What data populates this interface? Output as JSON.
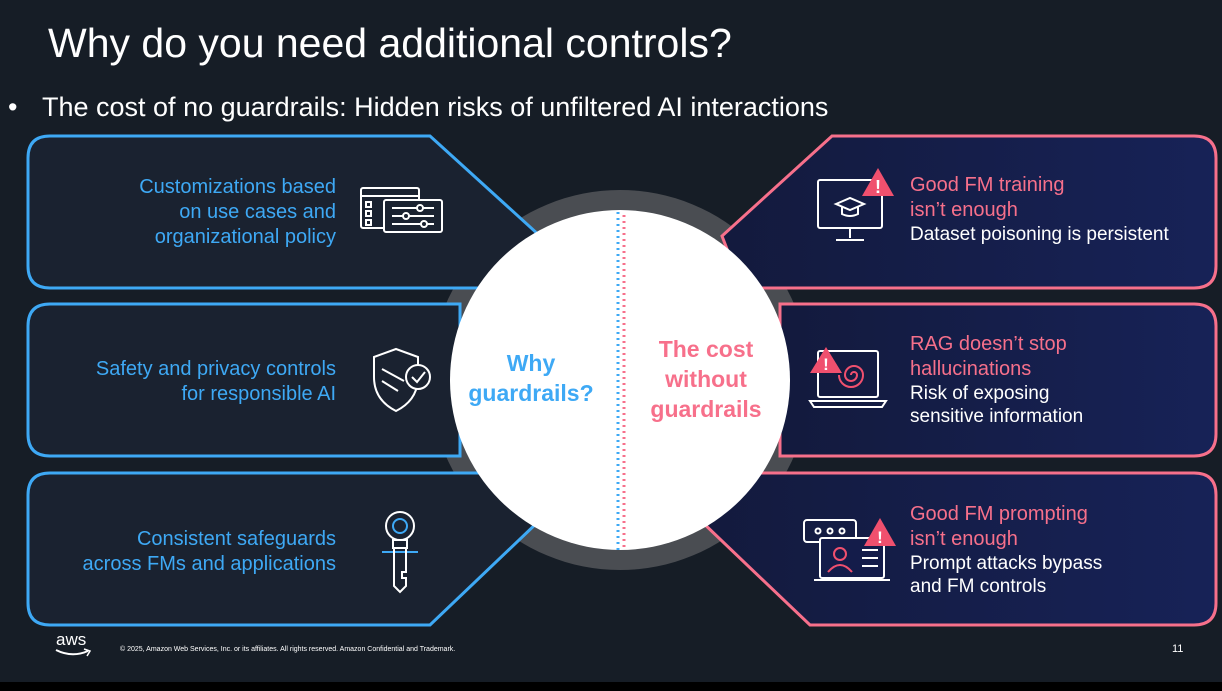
{
  "slide": {
    "title": "Why do you need additional controls?",
    "bullet_marker": "•",
    "bullet": "The cost of no guardrails: Hidden risks of unfiltered AI interactions",
    "left_items": [
      {
        "line1": "Customizations based",
        "line2": "on use cases and",
        "line3": "organizational policy",
        "icon": "settings-sliders-icon"
      },
      {
        "line1": "Safety and privacy controls",
        "line2": "for responsible AI",
        "icon": "shield-check-icon"
      },
      {
        "line1": "Consistent safeguards",
        "line2": "across FMs and applications",
        "icon": "key-icon"
      }
    ],
    "right_items": [
      {
        "head1": "Good FM training",
        "head2": "isn’t enough",
        "body1": "Dataset poisoning is persistent",
        "icon": "monitor-warning-icon"
      },
      {
        "head1": "RAG doesn’t stop",
        "head2": "hallucinations",
        "body1": "Risk of exposing",
        "body2": "sensitive information",
        "icon": "laptop-spiral-warning-icon"
      },
      {
        "head1": "Good FM prompting",
        "head2": "isn’t enough",
        "body1": "Prompt attacks bypass",
        "body2": "and FM controls",
        "icon": "chat-laptop-warning-icon"
      }
    ],
    "center": {
      "left_line1": "Why",
      "left_line2": "guardrails?",
      "right_line1": "The cost",
      "right_line2": "without",
      "right_line3": "guardrails"
    },
    "footer": {
      "logo": "aws",
      "copyright": "© 2025, Amazon Web Services, Inc. or its affiliates. All rights reserved. Amazon Confidential and Trademark.",
      "page_number": "11"
    },
    "colors": {
      "background": "#161d26",
      "blue": "#3ea9f5",
      "pink": "#f7708b",
      "panel_left": "#1a2230",
      "panel_right": "#141c4a"
    }
  }
}
